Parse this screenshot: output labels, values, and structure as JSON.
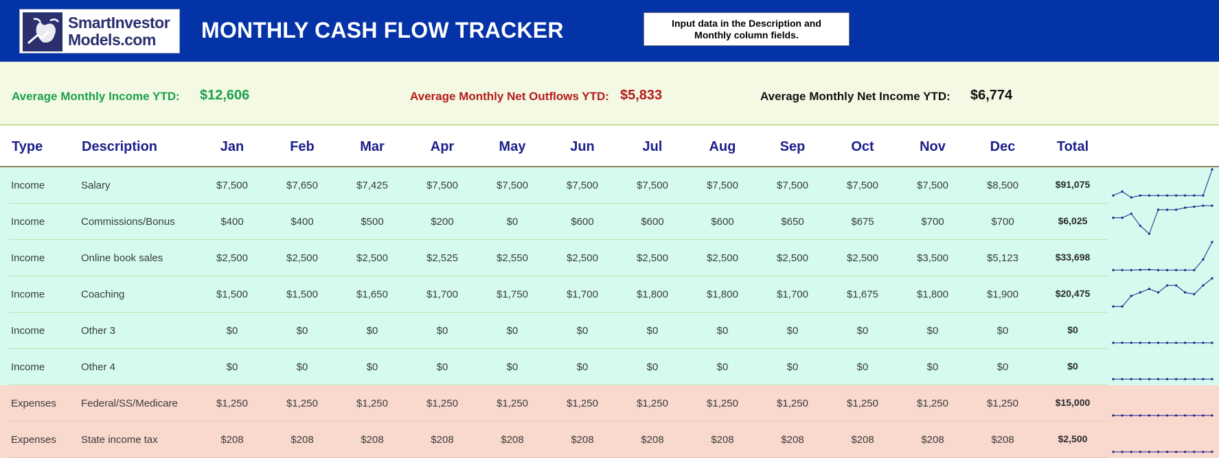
{
  "header": {
    "logo_line1": "SmartInvestor",
    "logo_line2": "Models.com",
    "title": "MONTHLY CASH FLOW TRACKER",
    "note_line1": "Input data in the Description and",
    "note_line2": "Monthly column fields."
  },
  "summary": {
    "income_label": "Average Monthly Income YTD:",
    "income_value": "$12,606",
    "outflow_label": "Average Monthly Net Outflows YTD:",
    "outflow_value": "$5,833",
    "net_label": "Average Monthly Net Income YTD:",
    "net_value": "$6,774"
  },
  "columns": {
    "type": "Type",
    "description": "Description",
    "months": [
      "Jan",
      "Feb",
      "Mar",
      "Apr",
      "May",
      "Jun",
      "Jul",
      "Aug",
      "Sep",
      "Oct",
      "Nov",
      "Dec"
    ],
    "total": "Total"
  },
  "rows": [
    {
      "category": "income",
      "type": "Income",
      "description": "Salary",
      "values": [
        "$7,500",
        "$7,650",
        "$7,425",
        "$7,500",
        "$7,500",
        "$7,500",
        "$7,500",
        "$7,500",
        "$7,500",
        "$7,500",
        "$7,500",
        "$8,500"
      ],
      "total": "$91,075",
      "spark": [
        7500,
        7650,
        7425,
        7500,
        7500,
        7500,
        7500,
        7500,
        7500,
        7500,
        7500,
        8500
      ]
    },
    {
      "category": "income",
      "type": "Income",
      "description": "Commissions/Bonus",
      "values": [
        "$400",
        "$400",
        "$500",
        "$200",
        "$0",
        "$600",
        "$600",
        "$600",
        "$650",
        "$675",
        "$700",
        "$700"
      ],
      "total": "$6,025",
      "spark": [
        400,
        400,
        500,
        200,
        0,
        600,
        600,
        600,
        650,
        675,
        700,
        700
      ]
    },
    {
      "category": "income",
      "type": "Income",
      "description": "Online book sales",
      "values": [
        "$2,500",
        "$2,500",
        "$2,500",
        "$2,525",
        "$2,550",
        "$2,500",
        "$2,500",
        "$2,500",
        "$2,500",
        "$2,500",
        "$3,500",
        "$5,123"
      ],
      "total": "$33,698",
      "spark": [
        2500,
        2500,
        2500,
        2525,
        2550,
        2500,
        2500,
        2500,
        2500,
        2500,
        3500,
        5123
      ]
    },
    {
      "category": "income",
      "type": "Income",
      "description": "Coaching",
      "values": [
        "$1,500",
        "$1,500",
        "$1,650",
        "$1,700",
        "$1,750",
        "$1,700",
        "$1,800",
        "$1,800",
        "$1,700",
        "$1,675",
        "$1,800",
        "$1,900"
      ],
      "total": "$20,475",
      "spark": [
        1500,
        1500,
        1650,
        1700,
        1750,
        1700,
        1800,
        1800,
        1700,
        1675,
        1800,
        1900
      ]
    },
    {
      "category": "income",
      "type": "Income",
      "description": "Other 3",
      "values": [
        "$0",
        "$0",
        "$0",
        "$0",
        "$0",
        "$0",
        "$0",
        "$0",
        "$0",
        "$0",
        "$0",
        "$0"
      ],
      "total": "$0",
      "spark": [
        0,
        0,
        0,
        0,
        0,
        0,
        0,
        0,
        0,
        0,
        0,
        0
      ]
    },
    {
      "category": "income",
      "type": "Income",
      "description": "Other 4",
      "values": [
        "$0",
        "$0",
        "$0",
        "$0",
        "$0",
        "$0",
        "$0",
        "$0",
        "$0",
        "$0",
        "$0",
        "$0"
      ],
      "total": "$0",
      "spark": [
        0,
        0,
        0,
        0,
        0,
        0,
        0,
        0,
        0,
        0,
        0,
        0
      ]
    },
    {
      "category": "expense",
      "type": "Expenses",
      "description": "Federal/SS/Medicare",
      "values": [
        "$1,250",
        "$1,250",
        "$1,250",
        "$1,250",
        "$1,250",
        "$1,250",
        "$1,250",
        "$1,250",
        "$1,250",
        "$1,250",
        "$1,250",
        "$1,250"
      ],
      "total": "$15,000",
      "spark": [
        1250,
        1250,
        1250,
        1250,
        1250,
        1250,
        1250,
        1250,
        1250,
        1250,
        1250,
        1250
      ]
    },
    {
      "category": "expense",
      "type": "Expenses",
      "description": "State income tax",
      "values": [
        "$208",
        "$208",
        "$208",
        "$208",
        "$208",
        "$208",
        "$208",
        "$208",
        "$208",
        "$208",
        "$208",
        "$208"
      ],
      "total": "$2,500",
      "spark": [
        208,
        208,
        208,
        208,
        208,
        208,
        208,
        208,
        208,
        208,
        208,
        208
      ]
    }
  ],
  "colors": {
    "header_bg": "#0433a8",
    "income_row": "#d4fbee",
    "expense_row": "#f9d8cd",
    "income_text": "#1a9f4e",
    "outflow_text": "#b41a1a",
    "sparkline": "#1b1f8a"
  }
}
